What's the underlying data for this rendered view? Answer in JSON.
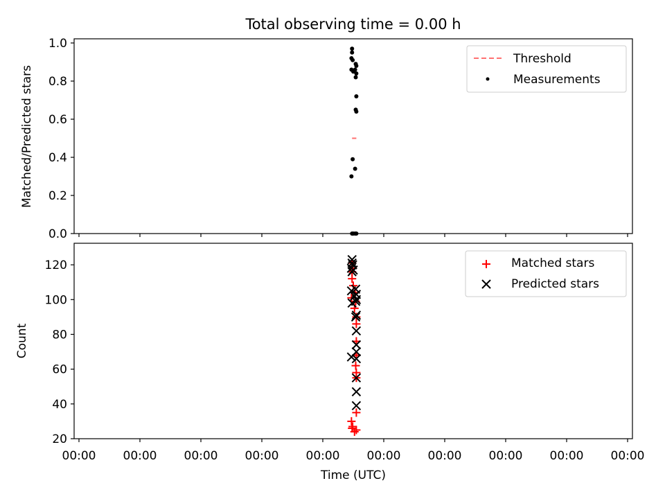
{
  "figure": {
    "title": "Total observing time = 0.00 h"
  },
  "chart_data": [
    {
      "type": "scatter",
      "panel": "top",
      "ylabel": "Matched/Predicted stars",
      "xlabel": "",
      "xlim": [
        0,
        9
      ],
      "ylim": [
        0,
        1.0
      ],
      "x_tick_values": [
        0,
        1,
        2,
        3,
        4,
        5,
        6,
        7,
        8,
        9
      ],
      "x_tick_labels": [],
      "y_tick_values": [
        0.0,
        0.2,
        0.4,
        0.6,
        0.8,
        1.0
      ],
      "y_tick_labels": [
        "0.0",
        "0.2",
        "0.4",
        "0.6",
        "0.8",
        "1.0"
      ],
      "grid": false,
      "legend_position": "top-right",
      "threshold": {
        "name": "Threshold",
        "value": 0.5,
        "x": [
          4.48,
          4.55
        ],
        "color": "#ff7070",
        "style": "dashed"
      },
      "series": [
        {
          "name": "Measurements",
          "marker": "dot",
          "color": "#000000",
          "points": [
            [
              4.48,
              0.97
            ],
            [
              4.48,
              0.95
            ],
            [
              4.47,
              0.92
            ],
            [
              4.49,
              0.91
            ],
            [
              4.54,
              0.89
            ],
            [
              4.55,
              0.88
            ],
            [
              4.47,
              0.86
            ],
            [
              4.5,
              0.85
            ],
            [
              4.53,
              0.86
            ],
            [
              4.55,
              0.84
            ],
            [
              4.54,
              0.82
            ],
            [
              4.55,
              0.72
            ],
            [
              4.54,
              0.65
            ],
            [
              4.55,
              0.64
            ],
            [
              4.49,
              0.39
            ],
            [
              4.53,
              0.34
            ],
            [
              4.47,
              0.3
            ],
            [
              4.48,
              0.0
            ],
            [
              4.5,
              0.0
            ],
            [
              4.53,
              0.0
            ],
            [
              4.55,
              0.0
            ]
          ]
        }
      ]
    },
    {
      "type": "scatter",
      "panel": "bottom",
      "ylabel": "Count",
      "xlabel": "Time (UTC)",
      "xlim": [
        0,
        9
      ],
      "ylim": [
        20,
        130
      ],
      "x_tick_values": [
        0,
        1,
        2,
        3,
        4,
        5,
        6,
        7,
        8,
        9
      ],
      "x_tick_labels": [
        "00:00",
        "00:00",
        "00:00",
        "00:00",
        "00:00",
        "00:00",
        "00:00",
        "00:00",
        "00:00",
        "00:00"
      ],
      "y_tick_values": [
        20,
        40,
        60,
        80,
        100,
        120
      ],
      "y_tick_labels": [
        "20",
        "40",
        "60",
        "80",
        "100",
        "120"
      ],
      "grid": false,
      "legend_position": "top-right",
      "series": [
        {
          "name": "Matched stars",
          "marker": "plus",
          "color": "#ff0000",
          "points": [
            [
              4.48,
              121
            ],
            [
              4.49,
              118
            ],
            [
              4.48,
              116
            ],
            [
              4.48,
              112
            ],
            [
              4.5,
              108
            ],
            [
              4.53,
              104
            ],
            [
              4.47,
              101
            ],
            [
              4.54,
              99
            ],
            [
              4.52,
              95
            ],
            [
              4.55,
              90
            ],
            [
              4.55,
              86
            ],
            [
              4.55,
              76
            ],
            [
              4.55,
              68
            ],
            [
              4.54,
              62
            ],
            [
              4.55,
              58
            ],
            [
              4.55,
              55
            ],
            [
              4.55,
              35
            ],
            [
              4.47,
              30
            ],
            [
              4.49,
              27
            ],
            [
              4.48,
              26
            ],
            [
              4.55,
              25
            ],
            [
              4.52,
              24
            ]
          ]
        },
        {
          "name": "Predicted stars",
          "marker": "x",
          "color": "#000000",
          "points": [
            [
              4.48,
              123
            ],
            [
              4.48,
              121
            ],
            [
              4.49,
              120
            ],
            [
              4.47,
              118
            ],
            [
              4.5,
              117
            ],
            [
              4.48,
              116
            ],
            [
              4.47,
              105
            ],
            [
              4.54,
              106
            ],
            [
              4.55,
              103
            ],
            [
              4.52,
              102
            ],
            [
              4.55,
              100
            ],
            [
              4.48,
              98
            ],
            [
              4.54,
              99
            ],
            [
              4.55,
              91
            ],
            [
              4.54,
              90
            ],
            [
              4.55,
              82
            ],
            [
              4.55,
              74
            ],
            [
              4.55,
              70
            ],
            [
              4.47,
              67
            ],
            [
              4.55,
              66
            ],
            [
              4.55,
              55
            ],
            [
              4.55,
              47
            ],
            [
              4.55,
              39
            ]
          ]
        }
      ]
    }
  ]
}
